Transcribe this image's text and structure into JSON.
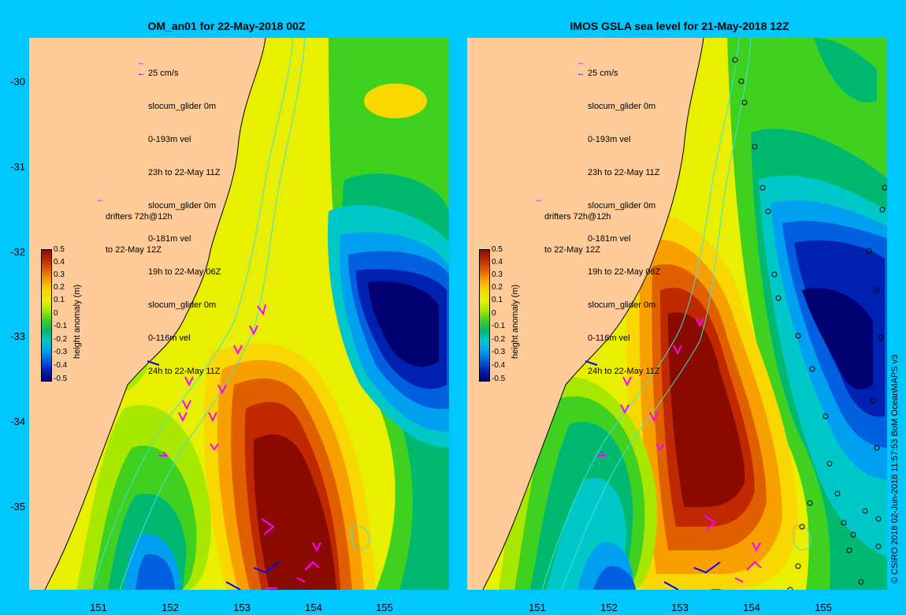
{
  "panels": [
    {
      "title": "OM_an01 for 22-May-2018 00Z",
      "legend": {
        "scale": "25 cm/s",
        "items": [
          "slocum_glider 0m",
          "0-193m vel",
          "23h to 22-May 11Z",
          "slocum_glider 0m",
          "0-181m vel",
          "19h to 22-May 06Z",
          "slocum_glider 0m",
          "0-116m vel",
          "24h to 22-May 11Z"
        ]
      },
      "drifters": [
        "drifters 72h@12h",
        "to 22-May 12Z"
      ]
    },
    {
      "title": "IMOS GSLA sea level  for 21-May-2018 12Z",
      "legend": {
        "scale": "25 cm/s",
        "items": [
          "slocum_glider 0m",
          "0-193m vel",
          "23h to 22-May 11Z",
          "slocum_glider 0m",
          "0-181m vel",
          "19h to 22-May 06Z",
          "slocum_glider 0m",
          "0-116m vel",
          "24h to 22-May 11Z"
        ]
      },
      "drifters": [
        "drifters 72h@12h",
        "to 22-May 12Z"
      ]
    }
  ],
  "axes": {
    "lat_labels": [
      "-30",
      "-31",
      "-32",
      "-33",
      "-34",
      "-35"
    ],
    "lon_labels": [
      "151",
      "152",
      "153",
      "154",
      "155"
    ]
  },
  "colorbar": {
    "title": "height anomaly (m)",
    "labels": [
      "0.5",
      "0.4",
      "0.3",
      "0.2",
      "0.1",
      "0",
      "-0.1",
      "-0.2",
      "-0.3",
      "-0.4",
      "-0.5"
    ],
    "colors": [
      "#8b0a00",
      "#c02800",
      "#e06000",
      "#f8a000",
      "#f8d800",
      "#e8f000",
      "#a8e800",
      "#40d020",
      "#00b870",
      "#00c8c8",
      "#00a0f0",
      "#0060e0",
      "#0020b0",
      "#000070"
    ]
  },
  "credit": "© CSIRO 2018   02-Jun-2018 11:57:53 BoM OceanMAPS v3",
  "colors": {
    "land": "#ffcc99",
    "background": "#00c8ff",
    "drifter": "#ff00ff",
    "glider": "#0000ff",
    "contour": "#40e0e0"
  }
}
